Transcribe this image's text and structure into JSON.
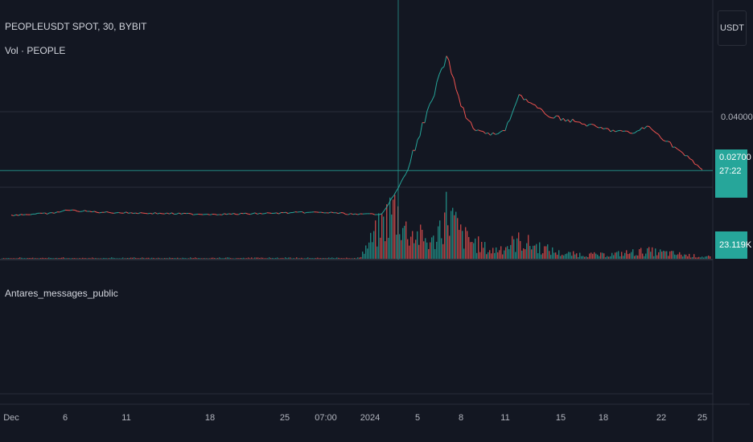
{
  "header": {
    "symbol_title": "PEOPLEUSDT SPOT, 30, BYBIT",
    "volume_label": "Vol · PEOPLE",
    "indicator_label": "Antares_messages_public",
    "currency_button": "USDT"
  },
  "price_scale": {
    "tick_label": "0.04000",
    "last_price": "0.02700",
    "countdown": "27:22",
    "volume_value": "23.119K"
  },
  "colors": {
    "background": "#131722",
    "up": "#26a69a",
    "down": "#ef5350",
    "grid": "#2a2e39"
  },
  "chart_data": {
    "type": "line",
    "symbol": "PEOPLEUSDT",
    "interval": "30",
    "exchange": "BYBIT",
    "x_tick_labels": [
      "Dec",
      "6",
      "11",
      "18",
      "25",
      "07:00",
      "2024",
      "5",
      "8",
      "11",
      "15",
      "18",
      "22",
      "25"
    ],
    "y_tick_labels": [
      "0.04000"
    ],
    "last_price": 0.027,
    "price_points": [
      {
        "x": "Dec 1",
        "y": 0.0172
      },
      {
        "x": "Dec 5",
        "y": 0.0176
      },
      {
        "x": "Dec 6",
        "y": 0.0183
      },
      {
        "x": "Dec 9",
        "y": 0.0178
      },
      {
        "x": "Dec 13",
        "y": 0.0176
      },
      {
        "x": "Dec 17",
        "y": 0.0174
      },
      {
        "x": "Dec 20",
        "y": 0.0174
      },
      {
        "x": "Dec 24",
        "y": 0.0176
      },
      {
        "x": "Dec 27",
        "y": 0.0178
      },
      {
        "x": "Dec 29",
        "y": 0.0177
      },
      {
        "x": "2024",
        "y": 0.0173
      },
      {
        "x": "Jan 2",
        "y": 0.0175
      },
      {
        "x": "Jan 3",
        "y": 0.0215
      },
      {
        "x": "Jan 4",
        "y": 0.0262
      },
      {
        "x": "Jan 5",
        "y": 0.0338
      },
      {
        "x": "Jan 6",
        "y": 0.0425
      },
      {
        "x": "Jan 7",
        "y": 0.0523
      },
      {
        "x": "Jan 8",
        "y": 0.0412
      },
      {
        "x": "Jan 9",
        "y": 0.0358
      },
      {
        "x": "Jan 10",
        "y": 0.0348
      },
      {
        "x": "Jan 11",
        "y": 0.0358
      },
      {
        "x": "Jan 12",
        "y": 0.0438
      },
      {
        "x": "Jan 14",
        "y": 0.0392
      },
      {
        "x": "Jan 16",
        "y": 0.0378
      },
      {
        "x": "Jan 18",
        "y": 0.0362
      },
      {
        "x": "Jan 20",
        "y": 0.0352
      },
      {
        "x": "Jan 21",
        "y": 0.0368
      },
      {
        "x": "Jan 23",
        "y": 0.0322
      },
      {
        "x": "Jan 25",
        "y": 0.0272
      }
    ],
    "volume_points": [
      {
        "x": "Dec 1",
        "y": 0.2
      },
      {
        "x": "2024",
        "y": 0.2
      },
      {
        "x": "Jan 3",
        "y": 20
      },
      {
        "x": "Jan 4",
        "y": 11
      },
      {
        "x": "Jan 5",
        "y": 9
      },
      {
        "x": "Jan 6",
        "y": 6
      },
      {
        "x": "Jan 7",
        "y": 19
      },
      {
        "x": "Jan 8",
        "y": 9
      },
      {
        "x": "Jan 10",
        "y": 3
      },
      {
        "x": "Jan 12",
        "y": 7
      },
      {
        "x": "Jan 15",
        "y": 2
      },
      {
        "x": "Jan 18",
        "y": 1.5
      },
      {
        "x": "Jan 21",
        "y": 3
      },
      {
        "x": "Jan 25",
        "y": 0.8
      }
    ]
  }
}
